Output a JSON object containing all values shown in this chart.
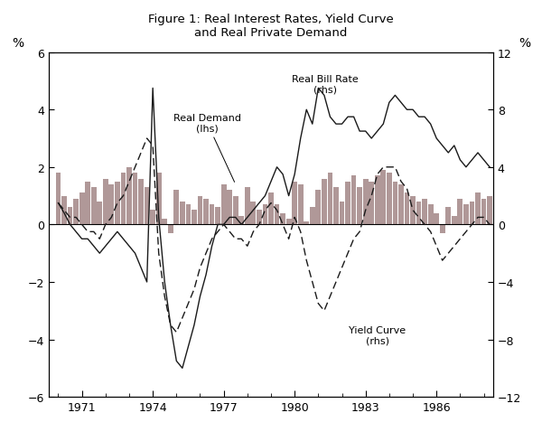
{
  "title": "Figure 1: Real Interest Rates, Yield Curve\nand Real Private Demand",
  "ylabel_left": "%",
  "ylabel_right": "%",
  "ylim_left": [
    -6,
    6
  ],
  "ylim_right": [
    -12,
    12
  ],
  "yticks_left": [
    -6,
    -4,
    -2,
    0,
    2,
    4,
    6
  ],
  "yticks_right": [
    -12,
    -8,
    -4,
    0,
    4,
    8,
    12
  ],
  "xticks": [
    1971,
    1974,
    1977,
    1980,
    1983,
    1986
  ],
  "xlim": [
    1969.6,
    1988.4
  ],
  "bar_color": "#b09898",
  "line_color": "#1a1a1a",
  "dashed_color": "#1a1a1a",
  "years": [
    1970.0,
    1970.25,
    1970.5,
    1970.75,
    1971.0,
    1971.25,
    1971.5,
    1971.75,
    1972.0,
    1972.25,
    1972.5,
    1972.75,
    1973.0,
    1973.25,
    1973.5,
    1973.75,
    1974.0,
    1974.25,
    1974.5,
    1974.75,
    1975.0,
    1975.25,
    1975.5,
    1975.75,
    1976.0,
    1976.25,
    1976.5,
    1976.75,
    1977.0,
    1977.25,
    1977.5,
    1977.75,
    1978.0,
    1978.25,
    1978.5,
    1978.75,
    1979.0,
    1979.25,
    1979.5,
    1979.75,
    1980.0,
    1980.25,
    1980.5,
    1980.75,
    1981.0,
    1981.25,
    1981.5,
    1981.75,
    1982.0,
    1982.25,
    1982.5,
    1982.75,
    1983.0,
    1983.25,
    1983.5,
    1983.75,
    1984.0,
    1984.25,
    1984.5,
    1984.75,
    1985.0,
    1985.25,
    1985.5,
    1985.75,
    1986.0,
    1986.25,
    1986.5,
    1986.75,
    1987.0,
    1987.25,
    1987.5,
    1987.75,
    1988.0,
    1988.25
  ],
  "real_demand_lhs": [
    1.8,
    1.0,
    0.6,
    0.9,
    1.1,
    1.5,
    1.3,
    0.8,
    1.6,
    1.4,
    1.5,
    1.8,
    2.0,
    1.8,
    1.6,
    1.3,
    0.5,
    1.8,
    0.2,
    -0.3,
    1.2,
    0.8,
    0.7,
    0.5,
    1.0,
    0.9,
    0.7,
    0.6,
    1.4,
    1.2,
    1.0,
    0.3,
    1.3,
    0.8,
    0.5,
    0.7,
    1.1,
    0.7,
    0.4,
    0.2,
    1.5,
    1.4,
    0.1,
    0.6,
    1.2,
    1.6,
    1.8,
    1.3,
    0.8,
    1.5,
    1.7,
    1.3,
    1.6,
    1.5,
    1.7,
    1.9,
    1.8,
    1.5,
    1.4,
    1.1,
    1.0,
    0.8,
    0.9,
    0.7,
    0.4,
    -0.3,
    0.6,
    0.3,
    0.9,
    0.7,
    0.8,
    1.1,
    0.9,
    1.0
  ],
  "real_bill_rate_rhs": [
    1.5,
    0.8,
    0.0,
    -0.5,
    -1.0,
    -1.0,
    -1.5,
    -2.0,
    -1.5,
    -1.0,
    -0.5,
    -1.0,
    -1.5,
    -2.0,
    -3.0,
    -4.0,
    9.5,
    0.5,
    -4.0,
    -7.0,
    -9.5,
    -10.0,
    -8.5,
    -7.0,
    -5.0,
    -3.5,
    -1.5,
    0.0,
    0.0,
    0.5,
    0.5,
    0.0,
    0.5,
    1.0,
    1.5,
    2.0,
    3.0,
    4.0,
    3.5,
    2.0,
    3.5,
    6.0,
    8.0,
    7.0,
    9.5,
    9.0,
    7.5,
    7.0,
    7.0,
    7.5,
    7.5,
    6.5,
    6.5,
    6.0,
    6.5,
    7.0,
    8.5,
    9.0,
    8.5,
    8.0,
    8.0,
    7.5,
    7.5,
    7.0,
    6.0,
    5.5,
    5.0,
    5.5,
    4.5,
    4.0,
    4.5,
    5.0,
    4.5,
    4.0
  ],
  "yield_curve_rhs": [
    1.5,
    1.0,
    0.5,
    0.5,
    0.0,
    -0.5,
    -0.5,
    -1.0,
    0.0,
    0.5,
    1.5,
    2.0,
    3.0,
    4.0,
    5.0,
    6.0,
    5.5,
    -2.0,
    -5.0,
    -7.0,
    -7.5,
    -6.5,
    -5.5,
    -4.5,
    -3.0,
    -2.0,
    -1.0,
    -0.5,
    0.0,
    -0.5,
    -1.0,
    -1.0,
    -1.5,
    -0.5,
    0.0,
    1.0,
    1.5,
    1.0,
    0.0,
    -1.0,
    0.5,
    -0.5,
    -2.5,
    -4.0,
    -5.5,
    -6.0,
    -5.0,
    -4.0,
    -3.0,
    -2.0,
    -1.0,
    -0.5,
    1.0,
    2.0,
    3.5,
    4.0,
    4.0,
    4.0,
    3.0,
    2.5,
    1.0,
    0.5,
    0.0,
    -0.5,
    -1.5,
    -2.5,
    -2.0,
    -1.5,
    -1.0,
    -0.5,
    0.0,
    0.5,
    0.5,
    0.0
  ]
}
